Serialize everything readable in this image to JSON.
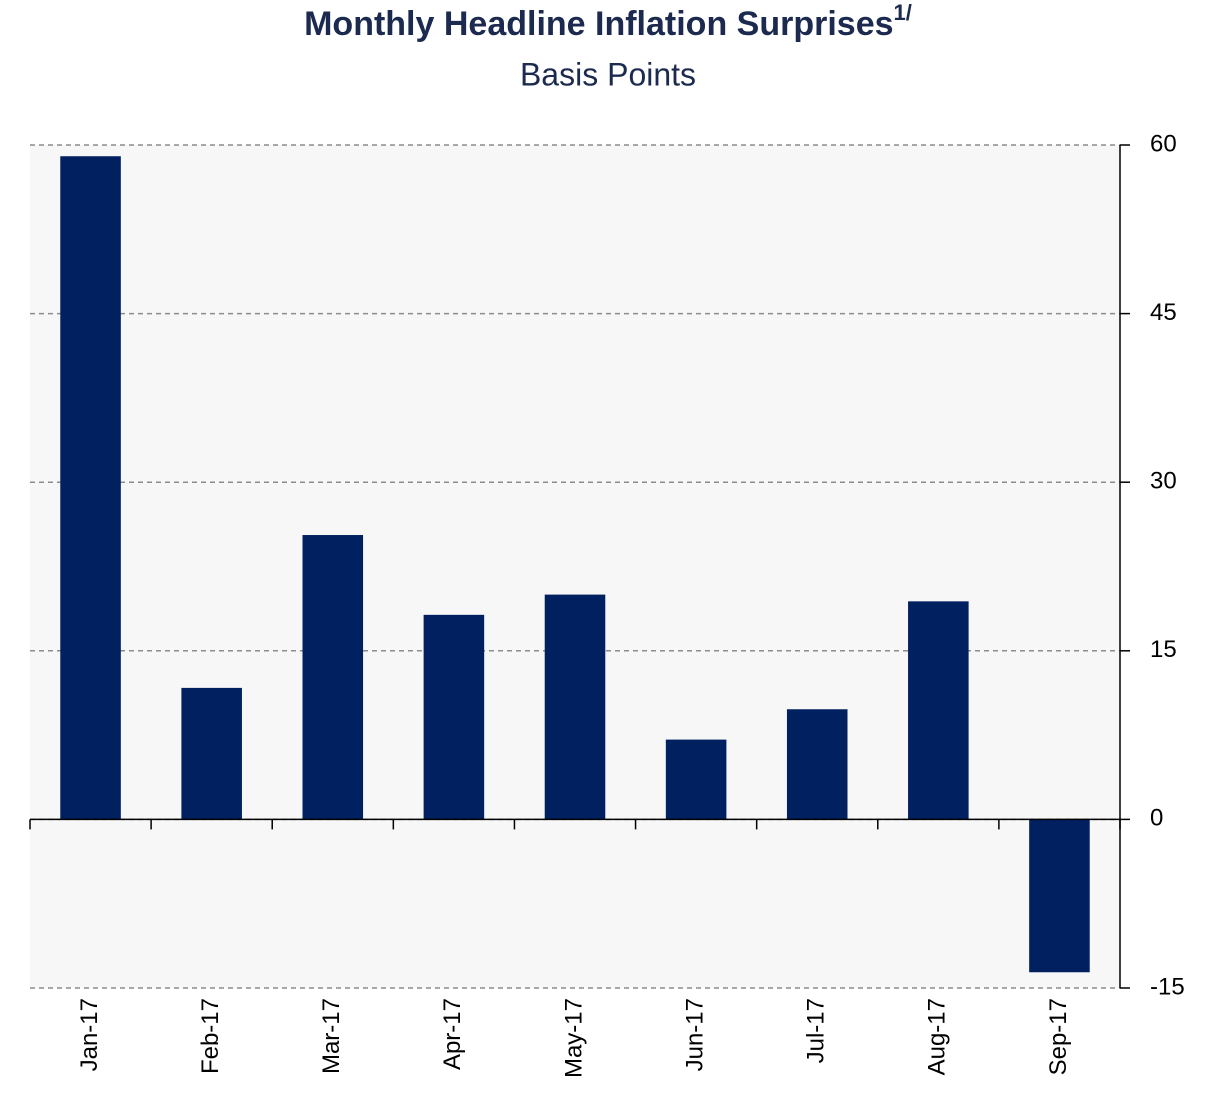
{
  "chart_data": {
    "type": "bar",
    "title": "Monthly Headline Inflation Surprises",
    "title_note": "1/",
    "subtitle": "Basis Points",
    "categories": [
      "Jan-17",
      "Feb-17",
      "Mar-17",
      "Apr-17",
      "May-17",
      "Jun-17",
      "Jul-17",
      "Aug-17",
      "Sep-17"
    ],
    "values": [
      59,
      11.7,
      25.3,
      18.2,
      20.0,
      7.1,
      9.8,
      19.4,
      -13.6
    ],
    "color": "#002060",
    "ylim": [
      -15,
      60
    ],
    "yticks": [
      -15,
      0,
      15,
      30,
      45,
      60
    ],
    "grid": true
  }
}
